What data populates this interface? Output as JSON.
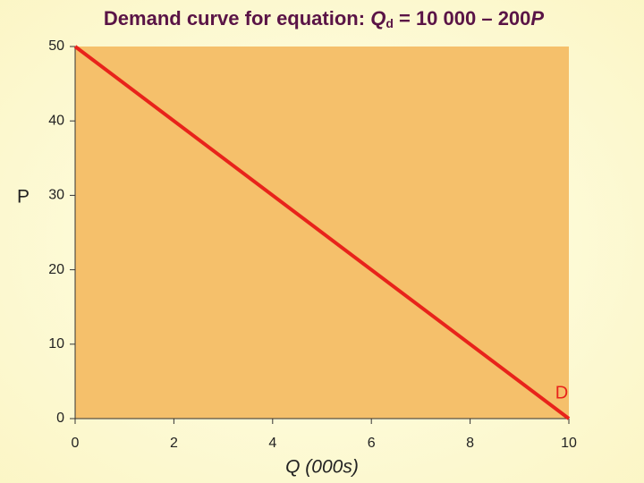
{
  "chart_data": {
    "type": "line",
    "title": [
      "Demand curve for equation: ",
      "Q",
      "d",
      " = 10 000 – 200",
      "P"
    ],
    "x": [
      0,
      10
    ],
    "series": [
      {
        "name": "D",
        "color": "#e8231b",
        "values": [
          50,
          0
        ]
      }
    ],
    "xlabel": "Q (000s)",
    "ylabel": "P",
    "xlim": [
      0,
      10
    ],
    "xticks": [
      0,
      2,
      4,
      6,
      8,
      10
    ],
    "ylim": [
      0,
      50
    ],
    "yticks": [
      0,
      10,
      20,
      30,
      40,
      50
    ],
    "plot_background": "#f5c06b"
  }
}
